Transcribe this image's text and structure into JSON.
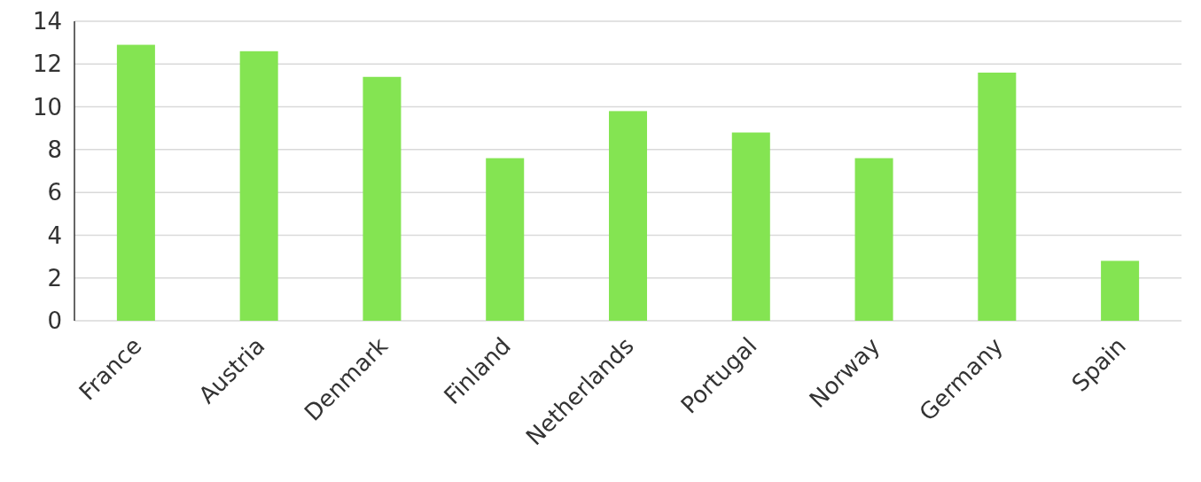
{
  "chart_data": {
    "type": "bar",
    "categories": [
      "France",
      "Austria",
      "Denmark",
      "Finland",
      "Netherlands",
      "Portugal",
      "Norway",
      "Germany",
      "Spain"
    ],
    "values": [
      12.9,
      12.6,
      11.4,
      7.6,
      9.8,
      8.8,
      7.6,
      11.6,
      2.8
    ],
    "color": "#84e452",
    "ylim": [
      0,
      14
    ],
    "yticks": [
      0,
      2,
      4,
      6,
      8,
      10,
      12,
      14
    ],
    "grid": "y"
  }
}
